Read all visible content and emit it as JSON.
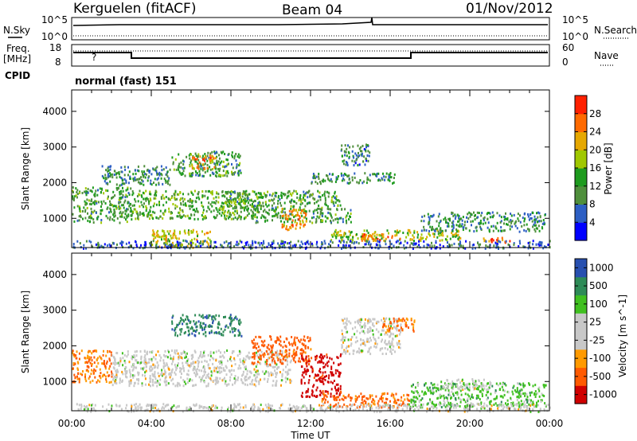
{
  "header": {
    "station": "Kerguelen (fitACF)",
    "beam": "Beam 04",
    "date": "01/Nov/2012"
  },
  "top_panels": {
    "nsky_label": "N.Sky",
    "nsky_ticks": [
      "10^5",
      "10^0"
    ],
    "nsearch_label": "N.Search",
    "freq_label_1": "Freq.",
    "freq_label_2": "[MHz]",
    "freq_ticks": [
      "18",
      "8"
    ],
    "nave_ticks": [
      "60",
      "0"
    ],
    "nave_label": "Nave",
    "cpid_label": "CPID",
    "cpid_value": "normal (fast) 151",
    "unknown_mark": "?"
  },
  "colors": {
    "power_scale": [
      "#0000ff",
      "#2d5fc4",
      "#4f8f3c",
      "#1e9b1e",
      "#a0c800",
      "#e6a800",
      "#ff6a00",
      "#ff2000"
    ],
    "velocity_scale": [
      "#d00000",
      "#ff5a00",
      "#ff9a00",
      "#c8c8c8",
      "#c8c8c8",
      "#40c020",
      "#2e8b57",
      "#2850b0"
    ],
    "ground_scatter": "#c8c8c8"
  },
  "chart_data": [
    {
      "type": "heatmap",
      "name": "power",
      "xlabel": "",
      "ylabel": "Slant Range [km]",
      "x_ticks": [
        "00:00",
        "04:00",
        "08:00",
        "12:00",
        "16:00",
        "20:00",
        "00:00"
      ],
      "y_ticks": [
        1000,
        2000,
        3000,
        4000
      ],
      "ylim": [
        180,
        4600
      ],
      "colorbar_label": "Power [dB]",
      "colorbar_ticks": [
        4,
        8,
        12,
        16,
        20,
        24,
        28
      ],
      "colorbar_range": [
        0,
        32
      ],
      "regions": [
        {
          "t": [
            0.0,
            3.0
          ],
          "r": [
            900,
            1900
          ],
          "p": 12
        },
        {
          "t": [
            1.5,
            5.0
          ],
          "r": [
            1950,
            2500
          ],
          "p": 10
        },
        {
          "t": [
            3.0,
            9.5
          ],
          "r": [
            1000,
            1800
          ],
          "p": 14
        },
        {
          "t": [
            5.0,
            8.5
          ],
          "r": [
            2200,
            2900
          ],
          "p": 12
        },
        {
          "t": [
            6.0,
            7.2
          ],
          "r": [
            2400,
            2800
          ],
          "p": 24
        },
        {
          "t": [
            7.5,
            13.5
          ],
          "r": [
            1300,
            1800
          ],
          "p": 12
        },
        {
          "t": [
            9.0,
            14.0
          ],
          "r": [
            900,
            1300
          ],
          "p": 12
        },
        {
          "t": [
            10.5,
            11.8
          ],
          "r": [
            700,
            1300
          ],
          "p": 24
        },
        {
          "t": [
            12.0,
            16.2
          ],
          "r": [
            2000,
            2300
          ],
          "p": 10
        },
        {
          "t": [
            13.5,
            15.0
          ],
          "r": [
            2500,
            3100
          ],
          "p": 8
        },
        {
          "t": [
            13.0,
            19.5
          ],
          "r": [
            400,
            700
          ],
          "p": 18
        },
        {
          "t": [
            14.5,
            16.5
          ],
          "r": [
            400,
            600
          ],
          "p": 26
        },
        {
          "t": [
            17.5,
            23.8
          ],
          "r": [
            650,
            1200
          ],
          "p": 10
        },
        {
          "t": [
            20.5,
            22.0
          ],
          "r": [
            350,
            500
          ],
          "p": 26
        },
        {
          "t": [
            4.0,
            7.0
          ],
          "r": [
            200,
            700
          ],
          "p": 20
        },
        {
          "t": [
            0.0,
            24.0
          ],
          "r": [
            180,
            400
          ],
          "p": 6
        }
      ]
    },
    {
      "type": "heatmap",
      "name": "velocity",
      "xlabel": "Time UT",
      "ylabel": "Slant Range [km]",
      "x_ticks": [
        "00:00",
        "04:00",
        "08:00",
        "12:00",
        "16:00",
        "20:00",
        "00:00"
      ],
      "y_ticks": [
        1000,
        2000,
        3000,
        4000
      ],
      "ylim": [
        180,
        4600
      ],
      "colorbar_label": "Velocity [m s^-1]",
      "colorbar_ticks": [
        1000,
        500,
        100,
        25,
        -25,
        -100,
        -500,
        -1000
      ],
      "regions": [
        {
          "t": [
            0.0,
            2.0
          ],
          "r": [
            1000,
            1900
          ],
          "v": -100
        },
        {
          "t": [
            2.0,
            11.0
          ],
          "r": [
            900,
            1900
          ],
          "v": 0
        },
        {
          "t": [
            5.0,
            8.5
          ],
          "r": [
            2300,
            2900
          ],
          "v": 400
        },
        {
          "t": [
            9.0,
            12.0
          ],
          "r": [
            1500,
            2300
          ],
          "v": -200
        },
        {
          "t": [
            11.5,
            13.5
          ],
          "r": [
            600,
            1800
          ],
          "v": -800
        },
        {
          "t": [
            12.5,
            17.0
          ],
          "r": [
            300,
            700
          ],
          "v": -150
        },
        {
          "t": [
            13.5,
            16.5
          ],
          "r": [
            1800,
            2800
          ],
          "v": 0
        },
        {
          "t": [
            15.5,
            17.2
          ],
          "r": [
            2400,
            2800
          ],
          "v": -100
        },
        {
          "t": [
            17.0,
            23.8
          ],
          "r": [
            300,
            1000
          ],
          "v": 60
        },
        {
          "t": [
            18.5,
            21.0
          ],
          "r": [
            800,
            1100
          ],
          "v": 0
        },
        {
          "t": [
            0.0,
            24.0
          ],
          "r": [
            180,
            400
          ],
          "v": 0
        }
      ]
    }
  ]
}
